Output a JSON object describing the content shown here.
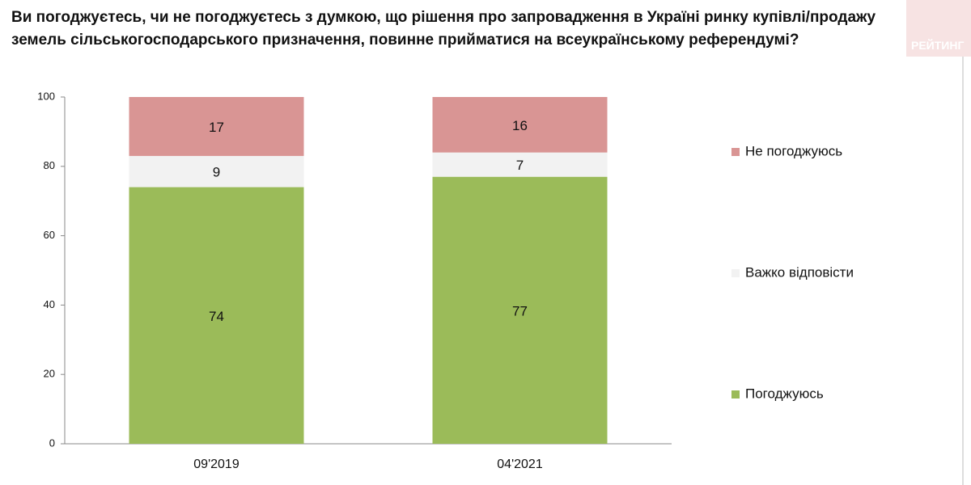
{
  "chart_data": {
    "type": "stacked_bar",
    "title": "Ви погоджуєтесь, чи не погоджуєтесь з думкою, що рішення про запровадження в Україні ринку купівлі/продажу земель сільськогосподарського призначення, повинне прийматися на всеукраїнському референдумі?",
    "logo": "РЕЙТИНГ",
    "categories": [
      "09'2019",
      "04'2021"
    ],
    "series": [
      {
        "name": "Погоджуюсь",
        "color": "#9bbb59",
        "values": [
          74,
          77
        ]
      },
      {
        "name": "Важко відповісти",
        "color": "#f2f2f2",
        "values": [
          9,
          7
        ]
      },
      {
        "name": "Не погоджуюсь",
        "color": "#d99594",
        "values": [
          17,
          16
        ]
      }
    ],
    "ylim": [
      0,
      100
    ],
    "yticks": [
      0,
      20,
      40,
      60,
      80,
      100
    ],
    "grid": false,
    "legend": "right"
  }
}
